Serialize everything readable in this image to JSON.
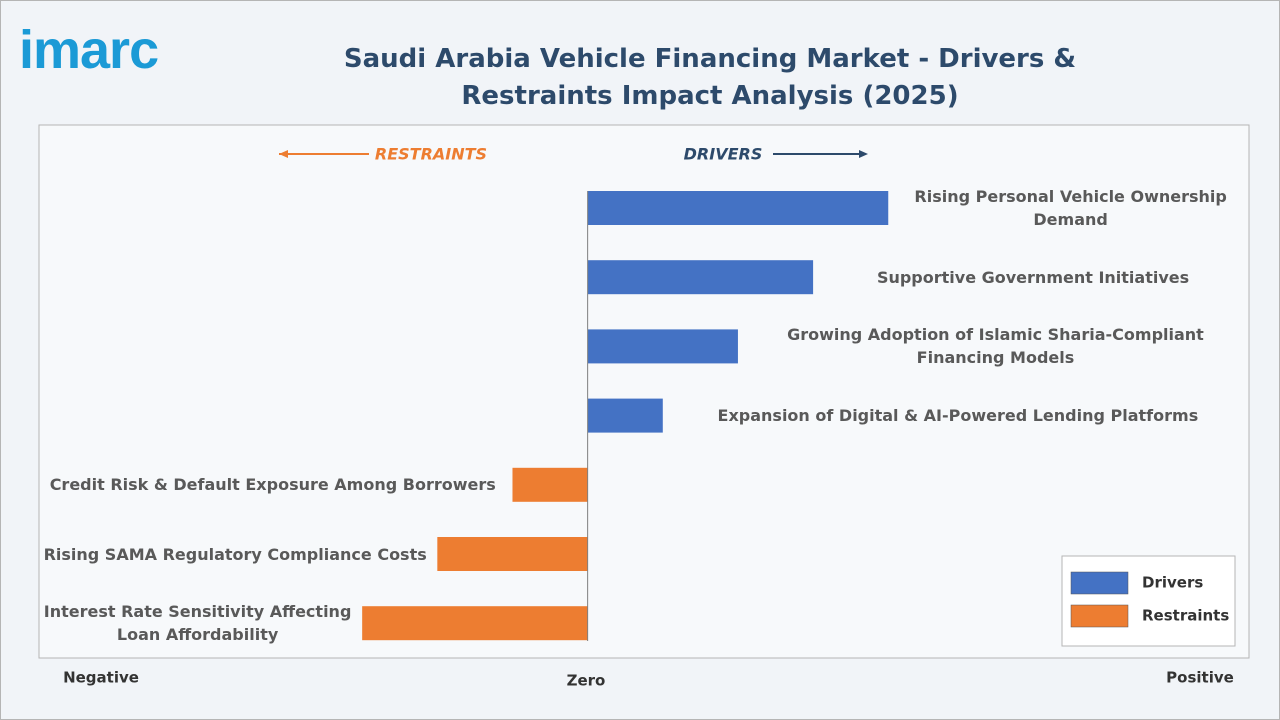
{
  "logo": "imarc",
  "chart_data": {
    "type": "diverging-bar",
    "title": "Saudi Arabia Vehicle Financing Market - Drivers & Restraints Impact Analysis (2025)",
    "restraints_label": "RESTRAINTS",
    "drivers_label": "DRIVERS",
    "negative_label": "Negative",
    "zero_label": "Zero",
    "positive_label": "Positive",
    "categories": [
      "Rising Personal Vehicle Ownership Demand",
      "Supportive Government Initiatives",
      "Growing Adoption of Islamic Sharia-Compliant Financing Models",
      "Expansion of Digital & AI-Powered Lending Platforms",
      "Credit Risk & Default Exposure Among Borrowers",
      "Rising SAMA Regulatory Compliance Costs",
      "Interest Rate Sensitivity Affecting Loan Affordability"
    ],
    "series": [
      {
        "name": "Drivers",
        "color": "#4472c4",
        "values": [
          4,
          3,
          2,
          1,
          null,
          null,
          null
        ]
      },
      {
        "name": "Restraints",
        "color": "#ed7d31",
        "values": [
          null,
          null,
          null,
          null,
          -1,
          -2,
          -3
        ]
      }
    ],
    "xlim": [
      -7.3,
      8.8
    ],
    "legend": "lower right"
  }
}
